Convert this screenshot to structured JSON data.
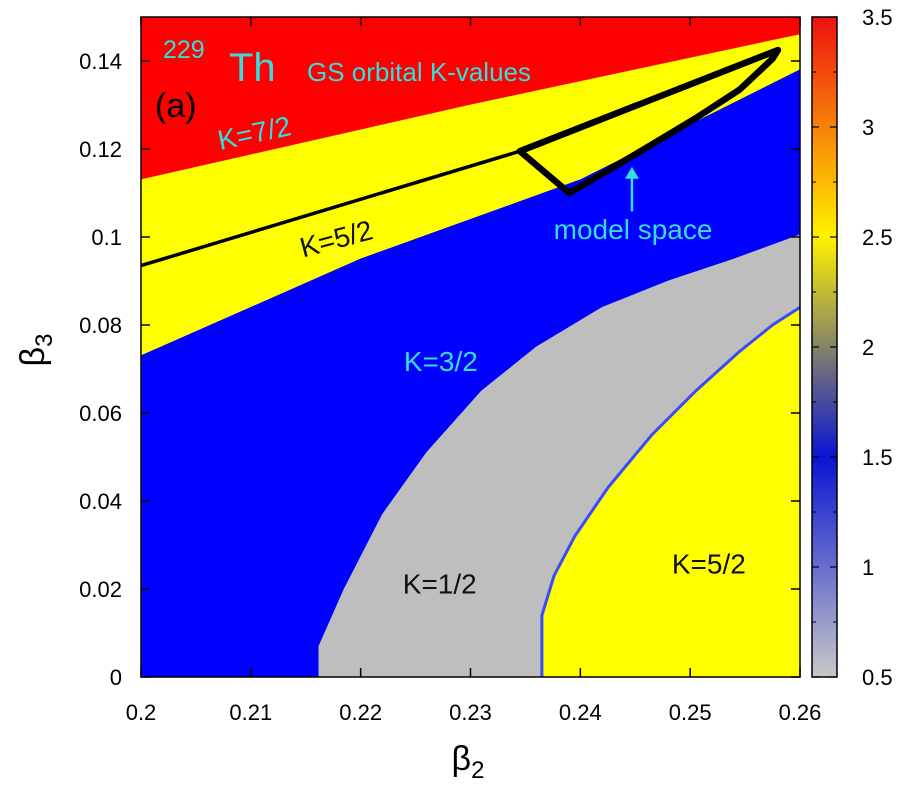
{
  "chart_data": {
    "type": "heatmap",
    "title": "GS orbital K-values",
    "nucleus": {
      "mass_number": "229",
      "symbol": "Th"
    },
    "panel_label": "(a)",
    "xlabel": {
      "main": "β",
      "sub": "2"
    },
    "ylabel": {
      "main": "β",
      "sub": "3"
    },
    "xlim": [
      0.2,
      0.26
    ],
    "ylim": [
      0,
      0.15
    ],
    "x_ticks": [
      0.2,
      0.21,
      0.22,
      0.23,
      0.24,
      0.25,
      0.26
    ],
    "x_tick_labels": [
      "0.2",
      "0.21",
      "0.22",
      "0.23",
      "0.24",
      "0.25",
      "0.26"
    ],
    "y_ticks": [
      0,
      0.02,
      0.04,
      0.06,
      0.08,
      0.1,
      0.12,
      0.14
    ],
    "y_tick_labels": [
      "0",
      "0.02",
      "0.04",
      "0.06",
      "0.08",
      "0.1",
      "0.12",
      "0.14"
    ],
    "colorbar": {
      "range": [
        0.5,
        3.5
      ],
      "ticks": [
        0.5,
        1,
        1.5,
        2,
        2.5,
        3,
        3.5
      ],
      "tick_labels": [
        "0.5",
        "1",
        "1.5",
        "2",
        "2.5",
        "3",
        "3.5"
      ],
      "stops": [
        {
          "value": 0.5,
          "color": "#c8c8c8"
        },
        {
          "value": 1.5,
          "color": "#0a14d2"
        },
        {
          "value": 2.5,
          "color": "#fff200"
        },
        {
          "value": 3.5,
          "color": "#ee1111"
        }
      ]
    },
    "regions": [
      {
        "K": 3.5,
        "label": "K=7/2",
        "color": "#ff0000",
        "boundary": [
          [
            0.2,
            0.15
          ],
          [
            0.26,
            0.15
          ],
          [
            0.26,
            0.146
          ],
          [
            0.23,
            0.13
          ],
          [
            0.2,
            0.113
          ]
        ]
      },
      {
        "K": 2.5,
        "label": "K=5/2",
        "color": "#ffff00",
        "boundary": [
          [
            0.2,
            0.113
          ],
          [
            0.23,
            0.13
          ],
          [
            0.26,
            0.146
          ],
          [
            0.26,
            0.138
          ],
          [
            0.24,
            0.113
          ],
          [
            0.22,
            0.095
          ],
          [
            0.2,
            0.073
          ]
        ]
      },
      {
        "K": 1.5,
        "label": "K=3/2",
        "color": "#0000ff",
        "boundary": [
          [
            0.2,
            0.073
          ],
          [
            0.22,
            0.095
          ],
          [
            0.24,
            0.113
          ],
          [
            0.26,
            0.138
          ],
          [
            0.26,
            0
          ],
          [
            0.2,
            0
          ]
        ]
      },
      {
        "K": 0.5,
        "label": "K=1/2",
        "color": "#bebebe",
        "boundary": [
          [
            0.2162,
            0
          ],
          [
            0.2162,
            0.007
          ],
          [
            0.2185,
            0.02
          ],
          [
            0.222,
            0.037
          ],
          [
            0.226,
            0.051
          ],
          [
            0.231,
            0.065
          ],
          [
            0.236,
            0.075
          ],
          [
            0.242,
            0.084
          ],
          [
            0.248,
            0.09
          ],
          [
            0.254,
            0.095
          ],
          [
            0.26,
            0.1005
          ],
          [
            0.26,
            0
          ],
          [
            0.2365,
            0
          ]
        ]
      },
      {
        "K": 2.5,
        "label": "K=5/2",
        "color": "#ffff00",
        "boundary": [
          [
            0.2365,
            0
          ],
          [
            0.2365,
            0.014
          ],
          [
            0.2376,
            0.023
          ],
          [
            0.2395,
            0.032
          ],
          [
            0.2425,
            0.043
          ],
          [
            0.2465,
            0.055
          ],
          [
            0.2505,
            0.065
          ],
          [
            0.2545,
            0.074
          ],
          [
            0.2575,
            0.08
          ],
          [
            0.26,
            0.084
          ],
          [
            0.26,
            0
          ]
        ]
      }
    ],
    "lines": [
      {
        "name": "thin-boundary-line",
        "points": [
          [
            0.2,
            0.0935
          ],
          [
            0.2345,
            0.1195
          ]
        ]
      }
    ],
    "model_space": {
      "label": "model space",
      "outline": [
        [
          0.2345,
          0.1195
        ],
        [
          0.258,
          0.1425
        ],
        [
          0.2575,
          0.1405
        ],
        [
          0.2545,
          0.1335
        ],
        [
          0.2505,
          0.127
        ],
        [
          0.2455,
          0.1195
        ],
        [
          0.239,
          0.11
        ],
        [
          0.2345,
          0.1195
        ]
      ],
      "arrow_tip": [
        0.2447,
        0.1155
      ],
      "arrow_tail": [
        0.2447,
        0.1058
      ],
      "label_position": [
        0.2448,
        0.0995
      ]
    },
    "region_labels": [
      {
        "text": "K=7/2",
        "at": [
          0.2105,
          0.1215
        ],
        "color": "#33dede",
        "angle": -12
      },
      {
        "text": "K=5/2",
        "at": [
          0.218,
          0.0975
        ],
        "color": "#111111",
        "angle": -15
      },
      {
        "text": "K=3/2",
        "at": [
          0.2273,
          0.0695
        ],
        "color": "#33dede",
        "angle": 0
      },
      {
        "text": "K=1/2",
        "at": [
          0.2272,
          0.019
        ],
        "color": "#111111",
        "angle": 0
      },
      {
        "text": "K=5/2",
        "at": [
          0.2517,
          0.0235
        ],
        "color": "#111111",
        "angle": 0
      }
    ],
    "annotation_color": "#33dede"
  }
}
